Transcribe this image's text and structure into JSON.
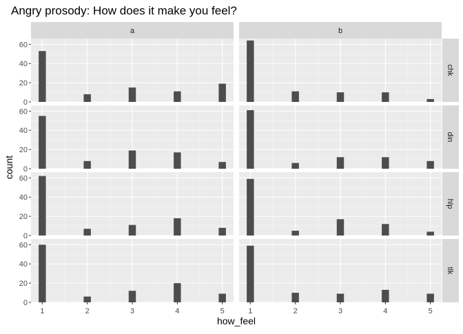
{
  "chart_data": {
    "type": "bar",
    "title": "Angry prosody: How does it make you feel?",
    "xlabel": "how_feel",
    "ylabel": "count",
    "x_ticks": [
      1,
      2,
      3,
      4,
      5
    ],
    "y_ticks": [
      0,
      20,
      40,
      60
    ],
    "xlim": [
      0.75,
      5.25
    ],
    "ylim": [
      0,
      66
    ],
    "grid": true,
    "facet_columns": [
      "a",
      "b"
    ],
    "facet_rows": [
      "chk",
      "din",
      "hlp",
      "tlk"
    ],
    "panels": [
      {
        "col": "a",
        "row": "chk",
        "x": [
          1,
          2,
          3,
          4,
          5
        ],
        "values": [
          53,
          8,
          15,
          11,
          19
        ]
      },
      {
        "col": "b",
        "row": "chk",
        "x": [
          1,
          2,
          3,
          4,
          5
        ],
        "values": [
          64,
          11,
          10,
          10,
          3
        ]
      },
      {
        "col": "a",
        "row": "din",
        "x": [
          1,
          2,
          3,
          4,
          5
        ],
        "values": [
          55,
          8,
          19,
          17,
          7
        ]
      },
      {
        "col": "b",
        "row": "din",
        "x": [
          1,
          2,
          3,
          4,
          5
        ],
        "values": [
          61,
          6,
          12,
          12,
          8
        ]
      },
      {
        "col": "a",
        "row": "hlp",
        "x": [
          1,
          2,
          3,
          4,
          5
        ],
        "values": [
          62,
          7,
          11,
          18,
          8
        ]
      },
      {
        "col": "b",
        "row": "hlp",
        "x": [
          1,
          2,
          3,
          4,
          5
        ],
        "values": [
          59,
          5,
          17,
          12,
          4
        ]
      },
      {
        "col": "a",
        "row": "tlk",
        "x": [
          1,
          2,
          3,
          4,
          5
        ],
        "values": [
          60,
          6,
          12,
          20,
          9
        ]
      },
      {
        "col": "b",
        "row": "tlk",
        "x": [
          1,
          2,
          3,
          4,
          5
        ],
        "values": [
          59,
          10,
          9,
          13,
          9
        ]
      }
    ],
    "bar_color": "#4d4d4d",
    "panel_background": "#ebebeb",
    "strip_background": "#d9d9d9"
  }
}
